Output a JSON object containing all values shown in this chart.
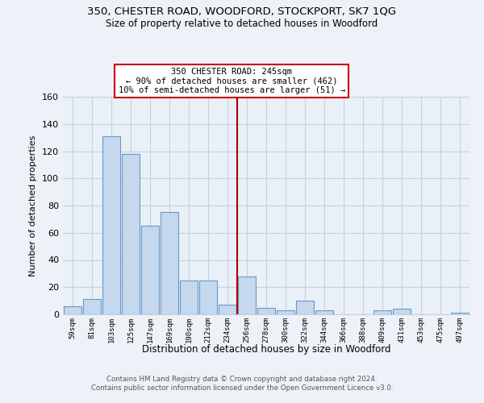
{
  "title1": "350, CHESTER ROAD, WOODFORD, STOCKPORT, SK7 1QG",
  "title2": "Size of property relative to detached houses in Woodford",
  "xlabel": "Distribution of detached houses by size in Woodford",
  "ylabel": "Number of detached properties",
  "bin_labels": [
    "59sqm",
    "81sqm",
    "103sqm",
    "125sqm",
    "147sqm",
    "169sqm",
    "190sqm",
    "212sqm",
    "234sqm",
    "256sqm",
    "278sqm",
    "300sqm",
    "322sqm",
    "344sqm",
    "366sqm",
    "388sqm",
    "409sqm",
    "431sqm",
    "453sqm",
    "475sqm",
    "497sqm"
  ],
  "bar_heights": [
    6,
    11,
    131,
    118,
    65,
    75,
    25,
    25,
    7,
    28,
    5,
    3,
    10,
    3,
    0,
    0,
    3,
    4,
    0,
    0,
    1
  ],
  "bar_color": "#c5d8ee",
  "bar_edge_color": "#6699cc",
  "vline_color": "#aa0000",
  "annotation_title": "350 CHESTER ROAD: 245sqm",
  "annotation_line1": "← 90% of detached houses are smaller (462)",
  "annotation_line2": "10% of semi-detached houses are larger (51) →",
  "annotation_box_color": "#ffffff",
  "annotation_box_edge": "#cc0000",
  "footer1": "Contains HM Land Registry data © Crown copyright and database right 2024.",
  "footer2": "Contains public sector information licensed under the Open Government Licence v3.0.",
  "ylim": [
    0,
    160
  ],
  "yticks": [
    0,
    20,
    40,
    60,
    80,
    100,
    120,
    140,
    160
  ],
  "bg_color": "#eef2f8",
  "plot_bg": "#eaf0f8",
  "grid_color": "#c8d0dc"
}
